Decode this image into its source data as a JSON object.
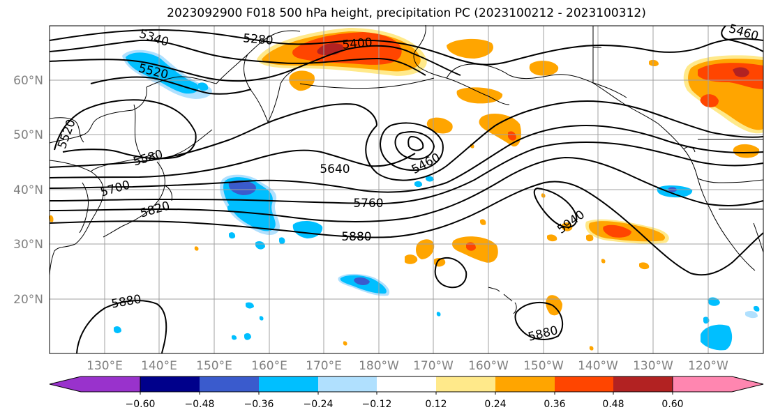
{
  "title": "2023092900 F018 500 hPa height, precipitation PC (2023100212 - 2023100312)",
  "map": {
    "lat_labels": [
      "60°N",
      "50°N",
      "40°N",
      "30°N",
      "20°N"
    ],
    "lon_labels": [
      "130°E",
      "140°E",
      "150°E",
      "160°E",
      "170°E",
      "180°W",
      "170°W",
      "160°W",
      "150°W",
      "140°W",
      "130°W",
      "120°W"
    ],
    "contour_labels": {
      "c5340": "5340",
      "c5280": "5280",
      "c5400": "5400",
      "c5460a": "5460",
      "c5520a": "5520",
      "c5520b": "5520",
      "c5580": "5580",
      "c5640": "5640",
      "c5460b": "5460",
      "c5700": "5700",
      "c5760": "5760",
      "c5820": "5820",
      "c5880a": "5880",
      "c5940": "5940",
      "c5880b": "5880",
      "c5880c": "5880"
    }
  },
  "colorbar": {
    "ticks": [
      "−0.60",
      "−0.48",
      "−0.36",
      "−0.24",
      "−0.12",
      "0.12",
      "0.24",
      "0.36",
      "0.48",
      "0.60"
    ],
    "colors": [
      "#9932cc",
      "#00008b",
      "#3a5bcd",
      "#00bfff",
      "#b0e0fe",
      "#ffffff",
      "#ffe98a",
      "#ffa500",
      "#ff4500",
      "#b22222",
      "#ff86b0"
    ]
  },
  "colors": {
    "grid": "#a0a0a0",
    "coast": "#000000",
    "contour": "#000000"
  }
}
